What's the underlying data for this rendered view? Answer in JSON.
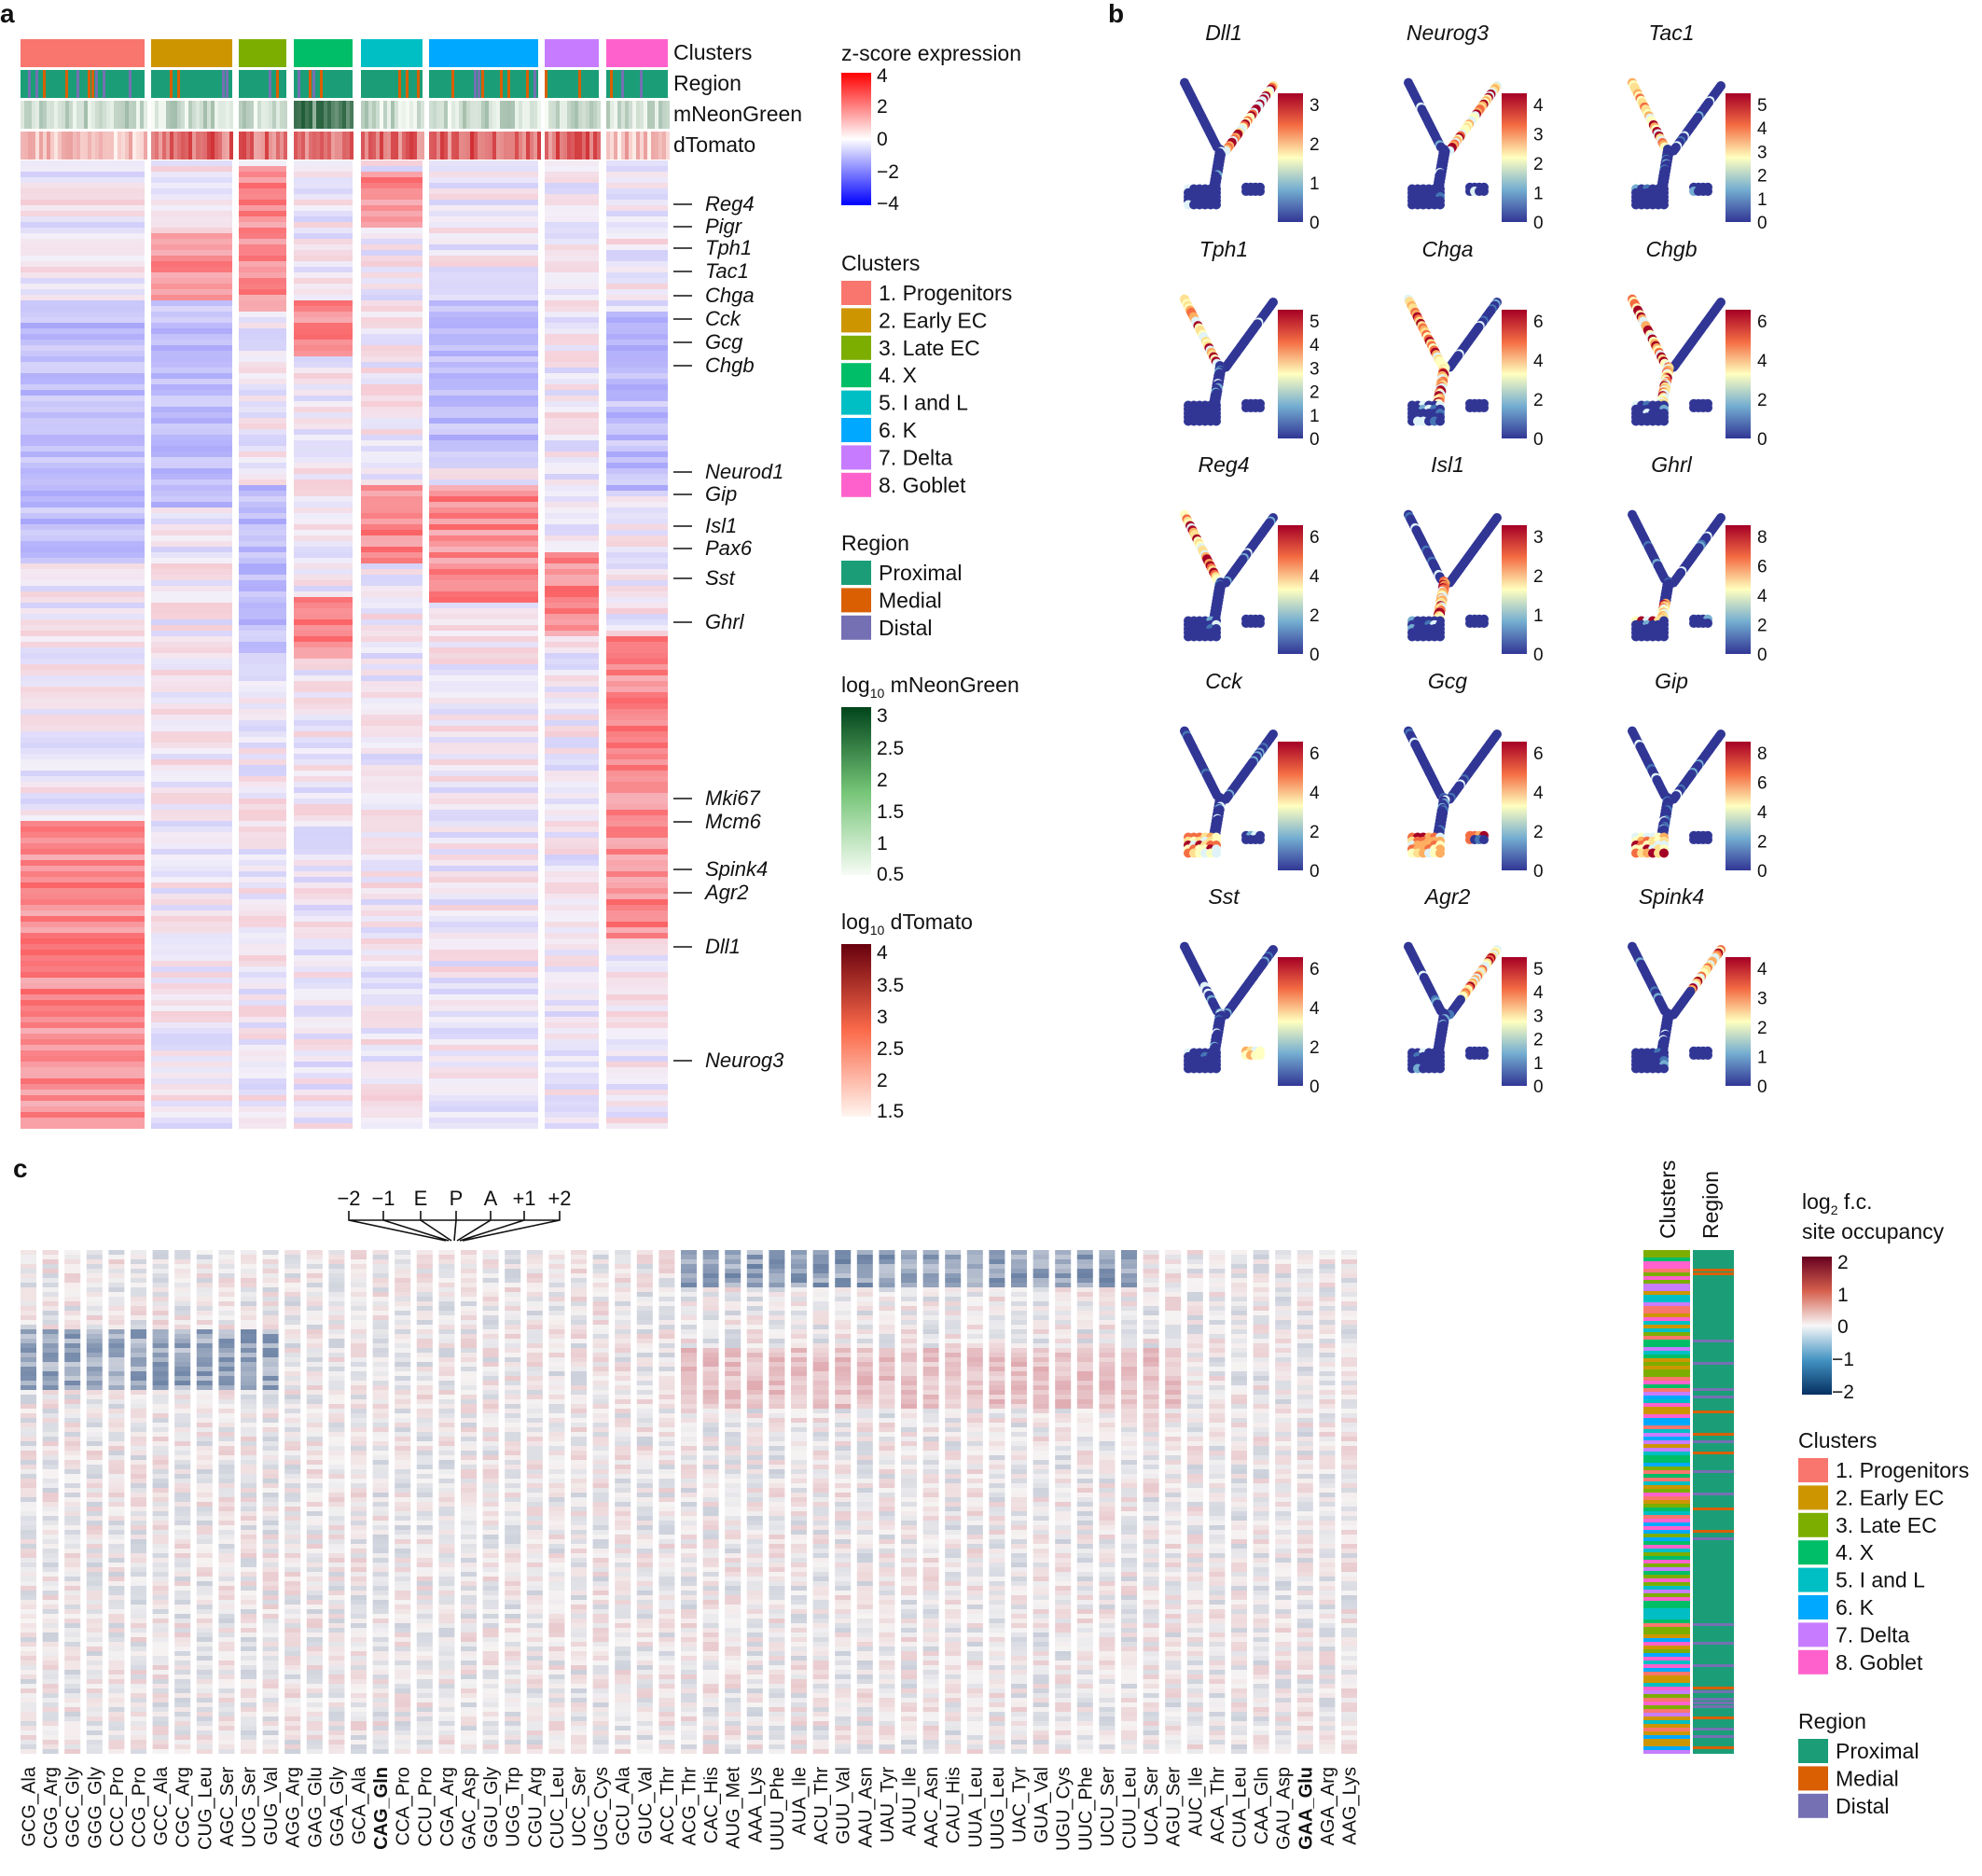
{
  "panels": {
    "a": "a",
    "b": "b",
    "c": "c"
  },
  "cluster_colors": [
    "#f8766d",
    "#cd9600",
    "#7cae00",
    "#00be67",
    "#00bfc4",
    "#00a9ff",
    "#c77cff",
    "#ff61cc"
  ],
  "region_colors": [
    "#1b9e77",
    "#d95f02",
    "#7570b3"
  ],
  "heatmap_a": {
    "annotation_rows": [
      "Clusters",
      "Region",
      "mNeonGreen",
      "dTomato"
    ],
    "gene_labels": [
      "Reg4",
      "Pigr",
      "Tph1",
      "Tac1",
      "Chga",
      "Cck",
      "Gcg",
      "Chgb",
      "Neurod1",
      "Gip",
      "Isl1",
      "Pax6",
      "Sst",
      "Ghrl",
      "Mki67",
      "Mcm6",
      "Spink4",
      "Agr2",
      "Dll1",
      "Neurog3"
    ]
  },
  "legends_a": {
    "zscore": {
      "title": "z-score expression",
      "ticks": [
        "4",
        "2",
        "0",
        "−2",
        "−4"
      ]
    },
    "clusters": {
      "title": "Clusters",
      "items": [
        "1. Progenitors",
        "2. Early EC",
        "3. Late EC",
        "4. X",
        "5. I and L",
        "6. K",
        "7. Delta",
        "8. Goblet"
      ]
    },
    "region": {
      "title": "Region",
      "items": [
        "Proximal",
        "Medial",
        "Distal"
      ]
    },
    "mneon": {
      "title_pre": "log",
      "title_sub": "10",
      "title_post": " mNeonGreen",
      "ticks": [
        "3",
        "2.5",
        "2",
        "1.5",
        "1",
        "0.5"
      ]
    },
    "dtomato": {
      "title_pre": "log",
      "title_sub": "10",
      "title_post": " dTomato",
      "ticks": [
        "4",
        "3.5",
        "3",
        "2.5",
        "2",
        "1.5"
      ]
    }
  },
  "chart_data": [
    {
      "type": "heatmap",
      "panel": "a",
      "title": "",
      "color_scale": {
        "label": "z-score expression",
        "range": [
          -4,
          4
        ]
      },
      "columns_grouped_by": [
        "1. Progenitors",
        "2. Early EC",
        "3. Late EC",
        "4. X",
        "5. I and L",
        "6. K",
        "7. Delta",
        "8. Goblet"
      ],
      "row_annotations": [
        "Reg4",
        "Pigr",
        "Tph1",
        "Tac1",
        "Chga",
        "Cck",
        "Gcg",
        "Chgb",
        "Neurod1",
        "Gip",
        "Isl1",
        "Pax6",
        "Sst",
        "Ghrl",
        "Mki67",
        "Mcm6",
        "Spink4",
        "Agr2",
        "Dll1",
        "Neurog3"
      ]
    },
    {
      "type": "scatter",
      "panel": "b",
      "small_multiples": [
        {
          "gene": "Dll1",
          "ticks": [
            "3",
            "2",
            "1",
            "0"
          ]
        },
        {
          "gene": "Neurog3",
          "ticks": [
            "4",
            "3",
            "2",
            "1",
            "0"
          ]
        },
        {
          "gene": "Tac1",
          "ticks": [
            "5",
            "4",
            "3",
            "2",
            "1",
            "0"
          ]
        },
        {
          "gene": "Tph1",
          "ticks": [
            "5",
            "4",
            "3",
            "2",
            "1",
            "0"
          ]
        },
        {
          "gene": "Chga",
          "ticks": [
            "6",
            "4",
            "2",
            "0"
          ]
        },
        {
          "gene": "Chgb",
          "ticks": [
            "6",
            "4",
            "2",
            "0"
          ]
        },
        {
          "gene": "Reg4",
          "ticks": [
            "6",
            "4",
            "2",
            "0"
          ]
        },
        {
          "gene": "Isl1",
          "ticks": [
            "3",
            "2",
            "1",
            "0"
          ]
        },
        {
          "gene": "Ghrl",
          "ticks": [
            "8",
            "6",
            "4",
            "2",
            "0"
          ]
        },
        {
          "gene": "Cck",
          "ticks": [
            "6",
            "4",
            "2",
            "0"
          ]
        },
        {
          "gene": "Gcg",
          "ticks": [
            "6",
            "4",
            "2",
            "0"
          ]
        },
        {
          "gene": "Gip",
          "ticks": [
            "8",
            "6",
            "4",
            "2",
            "0"
          ]
        },
        {
          "gene": "Sst",
          "ticks": [
            "6",
            "4",
            "2",
            "0"
          ]
        },
        {
          "gene": "Agr2",
          "ticks": [
            "5",
            "4",
            "3",
            "2",
            "1",
            "0"
          ]
        },
        {
          "gene": "Spink4",
          "ticks": [
            "4",
            "3",
            "2",
            "1",
            "0"
          ]
        }
      ]
    },
    {
      "type": "heatmap",
      "panel": "c",
      "site_labels": [
        "−2",
        "−1",
        "E",
        "P",
        "A",
        "+1",
        "+2"
      ],
      "codons": [
        "GCG_Ala",
        "CGG_Arg",
        "GGC_Gly",
        "GGG_Gly",
        "CCC_Pro",
        "CCG_Pro",
        "GCC_Ala",
        "CGC_Arg",
        "CUG_Leu",
        "AGC_Ser",
        "UCG_Ser",
        "GUG_Val",
        "AGG_Arg",
        "GAG_Glu",
        "GGA_Gly",
        "GCA_Ala",
        "CAG_Gln",
        "CCA_Pro",
        "CCU_Pro",
        "CGA_Arg",
        "GAC_Asp",
        "GGU_Gly",
        "UGG_Trp",
        "CGU_Arg",
        "CUC_Leu",
        "UCC_Ser",
        "UGC_Cys",
        "GCU_Ala",
        "GUC_Val",
        "ACC_Thr",
        "ACG_Thr",
        "CAC_His",
        "AUG_Met",
        "AAA_Lys",
        "UUU_Phe",
        "AUA_Ile",
        "ACU_Thr",
        "GUU_Val",
        "AAU_Asn",
        "UAU_Tyr",
        "AUU_Ile",
        "AAC_Asn",
        "CAU_His",
        "UUA_Leu",
        "UUG_Leu",
        "UAC_Tyr",
        "GUA_Val",
        "UGU_Cys",
        "UUC_Phe",
        "UCU_Ser",
        "CUU_Leu",
        "UCA_Ser",
        "AGU_Ser",
        "AUC_Ile",
        "ACA_Thr",
        "CUA_Leu",
        "CAA_Gln",
        "GAU_Asp",
        "GAA_Glu",
        "AGA_Arg",
        "AAG_Lys"
      ],
      "bold_codons": [
        "CAG_Gln",
        "GAA_Glu"
      ],
      "color_scale": {
        "label": "log2 f.c. site occupancy",
        "range": [
          -2,
          2
        ]
      },
      "side_annotations": [
        "Clusters",
        "Region"
      ]
    }
  ],
  "legends_c": {
    "fc": {
      "title_line1_pre": "log",
      "title_line1_sub": "2",
      "title_line1_post": " f.c.",
      "title_line2": "site occupancy",
      "ticks": [
        "2",
        "1",
        "0",
        "−1",
        "−2"
      ]
    },
    "clusters": {
      "title": "Clusters",
      "items": [
        "1. Progenitors",
        "2. Early EC",
        "3. Late EC",
        "4. X",
        "5. I and L",
        "6. K",
        "7. Delta",
        "8. Goblet"
      ]
    },
    "region": {
      "title": "Region",
      "items": [
        "Proximal",
        "Medial",
        "Distal"
      ]
    },
    "side_headers": [
      "Clusters",
      "Region"
    ]
  }
}
